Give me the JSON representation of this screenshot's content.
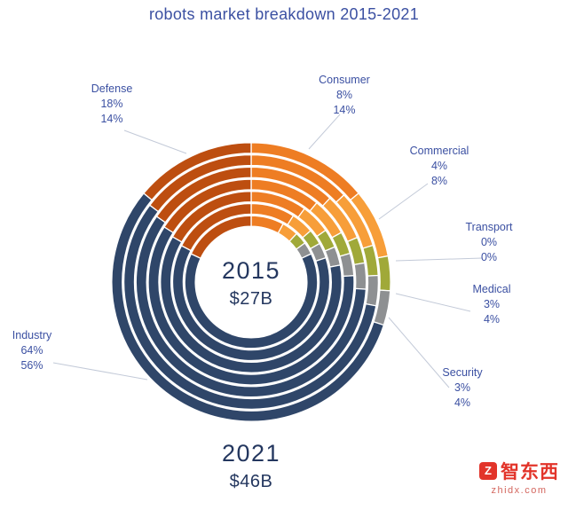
{
  "title": "robots market breakdown 2015-2021",
  "center": {
    "year": "2015",
    "value": "$27B"
  },
  "bottom": {
    "year": "2021",
    "value": "$46B"
  },
  "watermark": {
    "logo_glyph": "Z",
    "brand": "智东西",
    "domain": "zhidx.com"
  },
  "chart_data": {
    "type": "donut-multi-ring",
    "title": "robots market breakdown 2015-2021",
    "years": [
      2015,
      2016,
      2017,
      2018,
      2019,
      2020,
      2021
    ],
    "ring_order": "innermost ring = 2015, outermost ring = 2021, shares interpolated linearly between endpoints",
    "start_angle_deg": 0,
    "direction": "clockwise from 12 o'clock",
    "series": [
      {
        "name": "Consumer",
        "color": "#ee7d23",
        "pct_2015": 8,
        "pct_2021": 14,
        "label_2015": "8%",
        "label_2021": "14%"
      },
      {
        "name": "Commercial",
        "color": "#f79e39",
        "pct_2015": 4,
        "pct_2021": 8,
        "label_2015": "4%",
        "label_2021": "8%"
      },
      {
        "name": "Transport",
        "color": "#55a546",
        "pct_2015": 0,
        "pct_2021": 0,
        "label_2015": "0%",
        "label_2021": "0%"
      },
      {
        "name": "Medical",
        "color": "#a0a939",
        "pct_2015": 3,
        "pct_2021": 4,
        "label_2015": "3%",
        "label_2021": "4%"
      },
      {
        "name": "Security",
        "color": "#8e9092",
        "pct_2015": 3,
        "pct_2021": 4,
        "label_2015": "3%",
        "label_2021": "4%"
      },
      {
        "name": "Industry",
        "color": "#2f4669",
        "pct_2015": 64,
        "pct_2021": 56,
        "label_2015": "64%",
        "label_2021": "56%"
      },
      {
        "name": "Defense",
        "color": "#bd4e10",
        "pct_2015": 18,
        "pct_2021": 14,
        "label_2015": "18%",
        "label_2021": "14%"
      }
    ],
    "total_2015": "$27B",
    "total_2021": "$46B"
  }
}
